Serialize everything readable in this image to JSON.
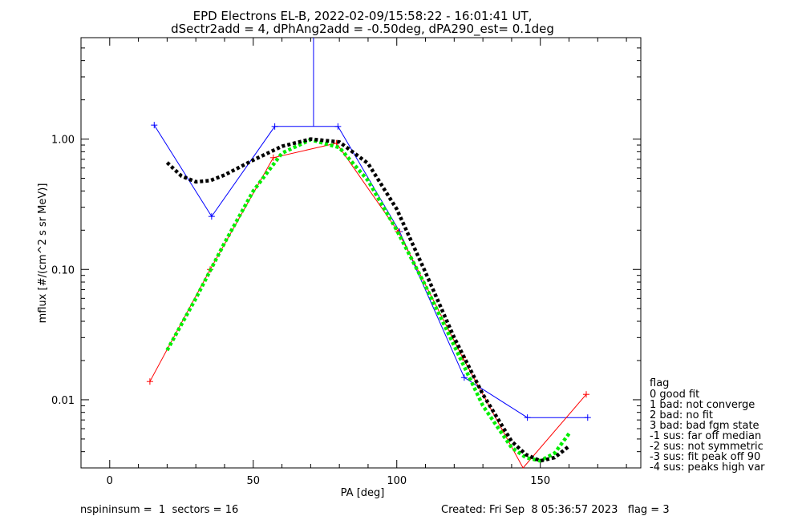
{
  "chart_data": {
    "type": "line",
    "title": "EPD Electrons EL-B, 2022-02-09/15:58:22 - 16:01:41 UT,",
    "subtitle": "dSectr2add = 4, dPhAng2add = -0.50deg, dPA290_est=   0.1deg",
    "xlabel": "PA [deg]",
    "ylabel": "mflux [#/(cm^2 s sr MeV)]",
    "xlim": [
      -10,
      185
    ],
    "ylim": [
      0.003,
      6.0
    ],
    "yscale": "log",
    "grid": false,
    "x_ticks": [
      0,
      50,
      100,
      150
    ],
    "x_tick_labels": [
      "0",
      "50",
      "100",
      "150"
    ],
    "y_ticks": [
      0.01,
      0.1,
      1.0
    ],
    "y_tick_labels": [
      "0.01",
      "0.10",
      "1.00"
    ],
    "series": [
      {
        "color": "#0000ff",
        "style": "line-plus",
        "x": [
          15.5,
          35.5,
          57.5,
          79.5,
          101,
          123.5,
          145.5,
          166.5
        ],
        "y": [
          1.28,
          0.255,
          1.25,
          1.25,
          0.195,
          0.0148,
          0.0073,
          0.0073
        ],
        "errorbar": {
          "x": 71,
          "y_low": 1.25,
          "y_high": 6.0
        }
      },
      {
        "color": "#ff0000",
        "style": "line-plus",
        "x": [
          14,
          35,
          57,
          79,
          100.5,
          123,
          144,
          166
        ],
        "y": [
          0.0138,
          0.1,
          0.72,
          0.93,
          0.195,
          0.021,
          0.0027,
          0.011
        ]
      },
      {
        "color": "#00ee00",
        "style": "dashed-fit",
        "x": [
          20,
          30,
          40,
          50,
          60,
          70,
          80,
          90,
          100,
          110,
          120,
          130,
          140,
          145,
          150,
          155,
          160
        ],
        "y": [
          0.024,
          0.06,
          0.16,
          0.4,
          0.78,
          0.99,
          0.86,
          0.48,
          0.2,
          0.075,
          0.026,
          0.009,
          0.0043,
          0.0036,
          0.0034,
          0.0039,
          0.0055
        ]
      },
      {
        "color": "#000000",
        "style": "dashed-fit",
        "x": [
          20,
          25,
          30,
          35,
          40,
          50,
          60,
          70,
          80,
          90,
          100,
          110,
          120,
          130,
          140,
          145,
          150,
          155,
          160
        ],
        "y": [
          0.66,
          0.52,
          0.47,
          0.48,
          0.53,
          0.69,
          0.88,
          1.0,
          0.95,
          0.65,
          0.29,
          0.095,
          0.03,
          0.011,
          0.0048,
          0.0038,
          0.0034,
          0.0036,
          0.0044
        ]
      }
    ],
    "legend": {
      "position": "right",
      "title": "flag",
      "items": [
        " 0 good fit",
        " 1 bad: not converge",
        " 2 bad: no fit",
        " 3 bad: bad fgm state",
        "-1 sus: far off median",
        "-2 sus: not symmetric",
        "-3 sus: fit peak off 90",
        "-4 sus: peaks high var"
      ]
    }
  },
  "footer": {
    "left": "nspininsum =  1  sectors = 16",
    "right": "Created: Fri Sep  8 05:36:57 2023   flag = 3"
  }
}
